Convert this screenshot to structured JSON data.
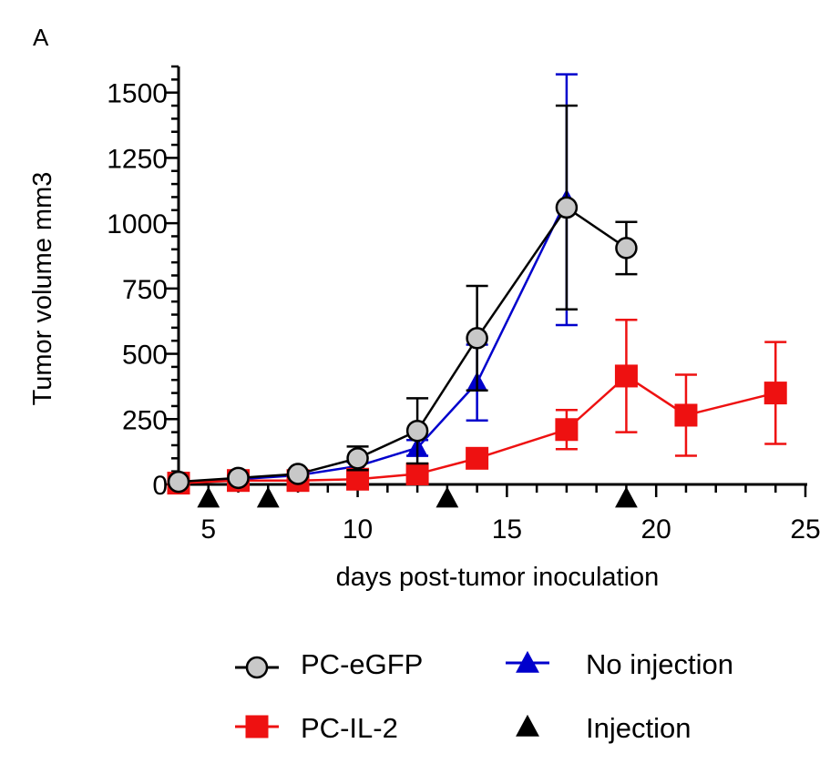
{
  "panel_label": "A",
  "chart_data": {
    "type": "line",
    "xlabel": "days post-tumor inoculation",
    "ylabel": "Tumor volume  mm3",
    "xlim": [
      4,
      25
    ],
    "ylim": [
      0,
      1600
    ],
    "xticks": [
      5,
      10,
      15,
      20,
      25
    ],
    "yticks": [
      0,
      250,
      500,
      750,
      1000,
      1250,
      1500
    ],
    "series": [
      {
        "name": "No injection",
        "color": "#0000cc",
        "marker": "triangle",
        "x": [
          4,
          6,
          8,
          10,
          12,
          14,
          17,
          19
        ],
        "y": [
          10,
          20,
          35,
          70,
          140,
          390,
          1090,
          null
        ],
        "err": [
          5,
          8,
          10,
          15,
          30,
          145,
          480,
          null
        ]
      },
      {
        "name": "PC-IL-2",
        "color": "#ee1111",
        "marker": "square",
        "x": [
          4,
          6,
          8,
          10,
          12,
          14,
          17,
          19,
          21,
          24
        ],
        "y": [
          5,
          15,
          15,
          20,
          40,
          100,
          210,
          415,
          265,
          350
        ],
        "err": [
          5,
          5,
          5,
          10,
          20,
          20,
          75,
          215,
          155,
          195
        ]
      },
      {
        "name": "PC-eGFP",
        "color": "#000000",
        "fill": "#c8c8c8",
        "marker": "circle",
        "x": [
          4,
          6,
          8,
          10,
          12,
          14,
          17,
          19
        ],
        "y": [
          10,
          25,
          40,
          100,
          205,
          560,
          1060,
          905
        ],
        "err": [
          5,
          8,
          10,
          45,
          125,
          200,
          390,
          100
        ]
      }
    ],
    "injections": {
      "name": "Injection",
      "color": "#000000",
      "marker": "triangle",
      "x": [
        5,
        7,
        13,
        19
      ]
    },
    "legend": {
      "placement": "bottom",
      "items": [
        {
          "label": "PC-eGFP",
          "marker": "circle",
          "color": "#000000",
          "fill": "#c8c8c8"
        },
        {
          "label": "No injection",
          "marker": "triangle",
          "color": "#0000cc",
          "fill": "#0000cc"
        },
        {
          "label": "PC-IL-2",
          "marker": "square",
          "color": "#ee1111",
          "fill": "#ee1111"
        },
        {
          "label": "Injection",
          "marker": "triangle",
          "color": "#000000",
          "fill": "#000000",
          "no_line": true
        }
      ]
    }
  }
}
